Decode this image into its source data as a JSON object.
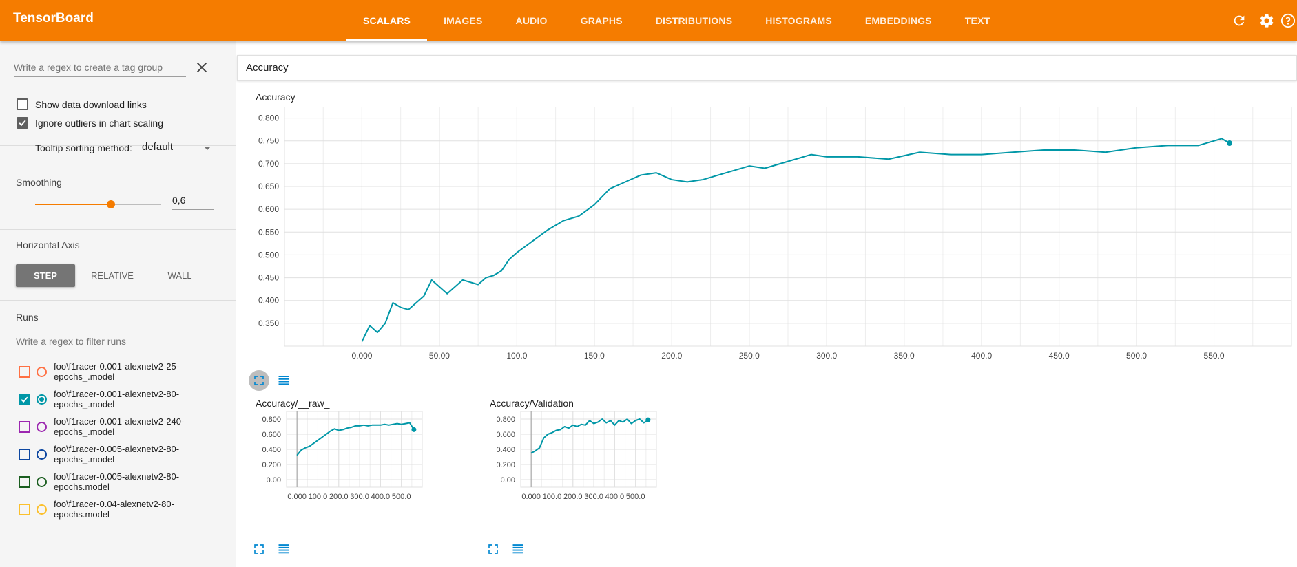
{
  "app": {
    "title": "TensorBoard"
  },
  "tabs": [
    {
      "label": "SCALARS",
      "active": true
    },
    {
      "label": "IMAGES"
    },
    {
      "label": "AUDIO"
    },
    {
      "label": "GRAPHS"
    },
    {
      "label": "DISTRIBUTIONS"
    },
    {
      "label": "HISTOGRAMS"
    },
    {
      "label": "EMBEDDINGS"
    },
    {
      "label": "TEXT"
    }
  ],
  "topicons": [
    "refresh-icon",
    "settings-icon",
    "help-icon"
  ],
  "sidebar": {
    "tag_filter": {
      "placeholder": "Write a regex to create a tag group"
    },
    "show_download_links": {
      "label": "Show data download links",
      "checked": false
    },
    "ignore_outliers": {
      "label": "Ignore outliers in chart scaling",
      "checked": true
    },
    "tooltip_sorting": {
      "label": "Tooltip sorting method:",
      "value": "default"
    },
    "smoothing": {
      "title": "Smoothing",
      "value": "0,6",
      "fraction": 0.6
    },
    "horizontal_axis": {
      "title": "Horizontal Axis",
      "options": [
        "STEP",
        "RELATIVE",
        "WALL"
      ],
      "selected": "STEP"
    },
    "runs": {
      "title": "Runs",
      "filter_placeholder": "Write a regex to filter runs",
      "items": [
        {
          "line1": "foo\\f1racer-0.001-alexnetv2-25-",
          "line2": "epochs_.model",
          "color": "#ff7043",
          "checked": false
        },
        {
          "line1": "foo\\f1racer-0.001-alexnetv2-80-",
          "line2": "epochs_.model",
          "color": "#0097a7",
          "checked": true
        },
        {
          "line1": "foo\\f1racer-0.001-alexnetv2-240-",
          "line2": "epochs_.model",
          "color": "#9c27b0",
          "checked": false
        },
        {
          "line1": "foo\\f1racer-0.005-alexnetv2-80-",
          "line2": "epochs_.model",
          "color": "#0d47a1",
          "checked": false
        },
        {
          "line1": "foo\\f1racer-0.005-alexnetv2-80-",
          "line2": "epochs.model",
          "color": "#1b5e20",
          "checked": false
        },
        {
          "line1": "foo\\f1racer-0.04-alexnetv2-80-",
          "line2": "epochs.model",
          "color": "#fbc02d",
          "checked": false
        }
      ]
    }
  },
  "main": {
    "category": "Accuracy"
  },
  "chart_data": [
    {
      "type": "line",
      "title": "Accuracy",
      "x": [
        0,
        5,
        10,
        15,
        20,
        25,
        30,
        35,
        40,
        45,
        50,
        55,
        60,
        65,
        70,
        75,
        80,
        85,
        90,
        95,
        100,
        110,
        120,
        130,
        140,
        150,
        160,
        170,
        180,
        190,
        200,
        210,
        220,
        230,
        240,
        250,
        260,
        270,
        280,
        290,
        300,
        320,
        340,
        360,
        380,
        400,
        420,
        440,
        460,
        480,
        500,
        520,
        540,
        555,
        560
      ],
      "series": [
        {
          "color": "#0097a7",
          "values": [
            0.31,
            0.345,
            0.33,
            0.35,
            0.395,
            0.385,
            0.38,
            0.395,
            0.41,
            0.445,
            0.43,
            0.415,
            0.43,
            0.445,
            0.44,
            0.435,
            0.45,
            0.455,
            0.465,
            0.49,
            0.505,
            0.53,
            0.555,
            0.575,
            0.585,
            0.61,
            0.645,
            0.66,
            0.675,
            0.68,
            0.665,
            0.66,
            0.665,
            0.675,
            0.685,
            0.695,
            0.69,
            0.7,
            0.71,
            0.72,
            0.715,
            0.715,
            0.71,
            0.725,
            0.72,
            0.72,
            0.725,
            0.73,
            0.73,
            0.725,
            0.735,
            0.74,
            0.74,
            0.755,
            0.745
          ]
        }
      ],
      "x_ticks": [
        "0.000",
        "50.00",
        "100.0",
        "150.0",
        "200.0",
        "250.0",
        "300.0",
        "350.0",
        "400.0",
        "450.0",
        "500.0",
        "550.0"
      ],
      "y_ticks": [
        "0.350",
        "0.400",
        "0.450",
        "0.500",
        "0.550",
        "0.600",
        "0.650",
        "0.700",
        "0.750",
        "0.800"
      ],
      "xlim": [
        -50,
        600
      ],
      "ylim": [
        0.3,
        0.825
      ],
      "grid": true
    },
    {
      "type": "line",
      "title": "Accuracy/__raw_",
      "x": [
        0,
        20,
        40,
        60,
        80,
        100,
        120,
        140,
        160,
        180,
        200,
        220,
        240,
        260,
        280,
        300,
        320,
        340,
        360,
        380,
        400,
        420,
        440,
        460,
        480,
        500,
        520,
        540,
        560
      ],
      "series": [
        {
          "color": "#0097a7",
          "values": [
            0.32,
            0.39,
            0.42,
            0.44,
            0.48,
            0.52,
            0.56,
            0.6,
            0.64,
            0.67,
            0.65,
            0.66,
            0.68,
            0.69,
            0.71,
            0.71,
            0.72,
            0.71,
            0.72,
            0.72,
            0.72,
            0.73,
            0.72,
            0.73,
            0.74,
            0.73,
            0.74,
            0.75,
            0.66
          ]
        }
      ],
      "x_ticks": [
        "0.000",
        "100.0",
        "200.0",
        "300.0",
        "400.0",
        "500.0"
      ],
      "y_ticks": [
        "0.00",
        "0.200",
        "0.400",
        "0.600",
        "0.800"
      ],
      "xlim": [
        -50,
        600
      ],
      "ylim": [
        -0.1,
        0.9
      ],
      "grid": true
    },
    {
      "type": "line",
      "title": "Accuracy/Validation",
      "x": [
        0,
        20,
        40,
        60,
        80,
        100,
        120,
        140,
        160,
        180,
        200,
        220,
        240,
        260,
        280,
        300,
        320,
        340,
        360,
        380,
        400,
        420,
        440,
        460,
        480,
        500,
        520,
        540,
        560
      ],
      "series": [
        {
          "color": "#0097a7",
          "values": [
            0.35,
            0.38,
            0.42,
            0.55,
            0.6,
            0.62,
            0.65,
            0.66,
            0.7,
            0.68,
            0.72,
            0.7,
            0.73,
            0.72,
            0.78,
            0.74,
            0.76,
            0.8,
            0.75,
            0.78,
            0.72,
            0.78,
            0.76,
            0.8,
            0.74,
            0.78,
            0.8,
            0.75,
            0.79
          ]
        }
      ],
      "x_ticks": [
        "0.000",
        "100.0",
        "200.0",
        "300.0",
        "400.0",
        "500.0"
      ],
      "y_ticks": [
        "0.00",
        "0.200",
        "0.400",
        "0.600",
        "0.800"
      ],
      "xlim": [
        -50,
        600
      ],
      "ylim": [
        -0.1,
        0.9
      ],
      "grid": true
    }
  ]
}
